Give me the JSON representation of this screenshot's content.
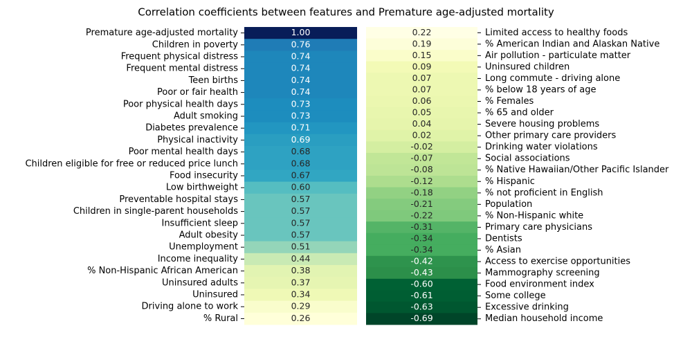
{
  "chart_data": [
    {
      "type": "heatmap",
      "title": "Correlation coefficients between features and Premature age-adjusted mortality",
      "label_side": "left",
      "colormap": [
        "#ffffd9",
        "#edf8b1",
        "#c7e9b4",
        "#7fcdbb",
        "#41b6c4",
        "#1d91c0",
        "#225ea8",
        "#253494",
        "#081d58"
      ],
      "categories": [
        "Premature age-adjusted mortality",
        "Children in poverty",
        "Frequent physical distress",
        "Frequent mental distress",
        "Teen births",
        "Poor or fair health",
        "Poor physical health days",
        "Adult smoking",
        "Diabetes prevalence",
        "Physical inactivity",
        "Poor mental health days",
        "Children eligible for free or reduced price lunch",
        "Food insecurity",
        "Low birthweight",
        "Preventable hospital stays",
        "Children in single-parent households",
        "Insufficient sleep",
        "Adult obesity",
        "Unemployment",
        "Income inequality",
        "% Non-Hispanic African American",
        "Uninsured adults",
        "Uninsured",
        "Driving alone to work",
        "% Rural"
      ],
      "values": [
        1.0,
        0.76,
        0.74,
        0.74,
        0.74,
        0.74,
        0.73,
        0.73,
        0.71,
        0.69,
        0.68,
        0.68,
        0.67,
        0.6,
        0.57,
        0.57,
        0.57,
        0.57,
        0.51,
        0.44,
        0.38,
        0.37,
        0.34,
        0.29,
        0.26
      ],
      "value_labels": [
        "1.00",
        "0.76",
        "0.74",
        "0.74",
        "0.74",
        "0.74",
        "0.73",
        "0.73",
        "0.71",
        "0.69",
        "0.68",
        "0.68",
        "0.67",
        "0.60",
        "0.57",
        "0.57",
        "0.57",
        "0.57",
        "0.51",
        "0.44",
        "0.38",
        "0.37",
        "0.34",
        "0.29",
        "0.26"
      ]
    },
    {
      "type": "heatmap",
      "label_side": "right",
      "colormap": [
        "#004529",
        "#006837",
        "#238443",
        "#41ab5d",
        "#78c679",
        "#addd8e",
        "#d9f0a3",
        "#f7fcb9",
        "#ffffe5"
      ],
      "categories": [
        "Limited access to healthy foods",
        "% American Indian and Alaskan Native",
        "Air pollution - particulate matter",
        "Uninsured children",
        "Long commute - driving alone",
        "% below 18 years of age",
        "% Females",
        "% 65 and older",
        "Severe housing problems",
        "Other primary care providers",
        "Drinking water violations",
        "Social associations",
        "% Native Hawaiian/Other Pacific Islander",
        "% Hispanic",
        "% not proficient in English",
        "Population",
        "% Non-Hispanic white",
        "Primary care physicians",
        "Dentists",
        "% Asian",
        "Access to exercise opportunities",
        "Mammography screening",
        "Food environment index",
        "Some college",
        "Excessive drinking",
        "Median household income"
      ],
      "values": [
        0.22,
        0.19,
        0.15,
        0.09,
        0.07,
        0.07,
        0.06,
        0.05,
        0.04,
        0.02,
        -0.02,
        -0.07,
        -0.08,
        -0.12,
        -0.18,
        -0.21,
        -0.22,
        -0.31,
        -0.34,
        -0.34,
        -0.42,
        -0.43,
        -0.6,
        -0.61,
        -0.63,
        -0.69
      ],
      "value_labels": [
        "0.22",
        "0.19",
        "0.15",
        "0.09",
        "0.07",
        "0.07",
        "0.06",
        "0.05",
        "0.04",
        "0.02",
        "-0.02",
        "-0.07",
        "-0.08",
        "-0.12",
        "-0.18",
        "-0.21",
        "-0.22",
        "-0.31",
        "-0.34",
        "-0.34",
        "-0.42",
        "-0.43",
        "-0.60",
        "-0.61",
        "-0.63",
        "-0.69"
      ]
    }
  ]
}
